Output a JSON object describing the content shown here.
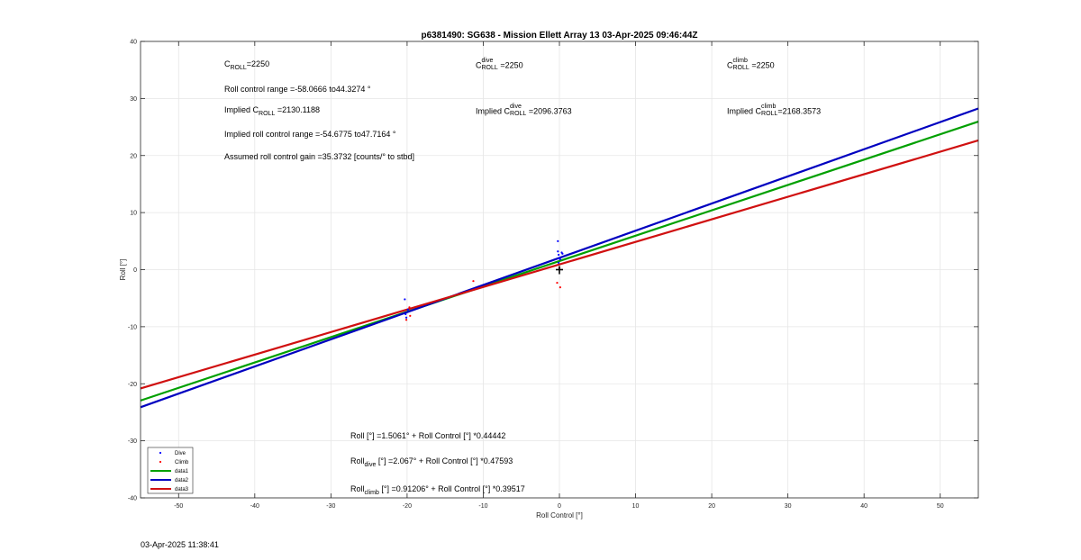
{
  "chart_data": {
    "type": "scatter",
    "title": "p6381490: SG638 - Mission Ellett Array 13 03-Apr-2025 09:46:44Z",
    "xlabel": "Roll Control [°]",
    "ylabel": "Roll [°]",
    "xlim": [
      -55,
      55
    ],
    "ylim": [
      -40,
      40
    ],
    "xticks": [
      -50,
      -40,
      -30,
      -20,
      -10,
      0,
      10,
      20,
      30,
      40,
      50
    ],
    "yticks": [
      -40,
      -30,
      -20,
      -10,
      0,
      10,
      20,
      30,
      40
    ],
    "grid": true,
    "legend_position": "bottom-left",
    "series": [
      {
        "name": "Dive",
        "kind": "scatter",
        "color": "#0000ff",
        "points": [
          [
            -20.3,
            -5.2
          ],
          [
            -20.2,
            -7.8
          ],
          [
            -20.1,
            -8.4
          ],
          [
            -19.9,
            -7.0
          ],
          [
            -0.2,
            5.0
          ],
          [
            -0.2,
            3.2
          ],
          [
            -0.1,
            2.6
          ],
          [
            0.0,
            2.0
          ],
          [
            0.1,
            1.8
          ],
          [
            -0.1,
            1.2
          ],
          [
            0.4,
            2.8
          ],
          [
            0.3,
            3.0
          ]
        ]
      },
      {
        "name": "Climb",
        "kind": "scatter",
        "color": "#ff0000",
        "points": [
          [
            -20.1,
            -8.8
          ],
          [
            -19.6,
            -8.1
          ],
          [
            -19.7,
            -6.6
          ],
          [
            -11.3,
            -2.0
          ],
          [
            -0.3,
            -2.3
          ],
          [
            0.1,
            -3.1
          ],
          [
            0.0,
            0.3
          ]
        ]
      },
      {
        "name": "data1",
        "kind": "line",
        "color": "#00a000",
        "intercept": 1.5061,
        "slope": 0.44442
      },
      {
        "name": "data2",
        "kind": "line",
        "color": "#0000c0",
        "intercept": 2.067,
        "slope": 0.47593
      },
      {
        "name": "data3",
        "kind": "line",
        "color": "#d01010",
        "intercept": 0.91206,
        "slope": 0.39517
      }
    ],
    "marker": {
      "symbol": "+",
      "x": 0,
      "y": 0,
      "color": "#000000"
    }
  },
  "annotations": {
    "c_roll_base": "C",
    "c_roll_sub": "ROLL",
    "c_roll_value": "=2250",
    "c_dive_base": "C",
    "c_dive_sup": "dive",
    "c_dive_sub": "ROLL",
    "c_dive_value": "=2250",
    "c_climb_base": "C",
    "c_climb_sup": "climb",
    "c_climb_sub": "ROLL",
    "c_climb_value": "=2250",
    "roll_control_range": "Roll control range =-58.0666 to44.3274 °",
    "implied_c_prefix": "Implied C",
    "implied_c_sub": "ROLL",
    "implied_c_value": "=2130.1188",
    "implied_dive_prefix": "Implied C",
    "implied_dive_sup": "dive",
    "implied_dive_sub": "ROLL",
    "implied_dive_value": "=2096.3763",
    "implied_climb_prefix": "Implied C",
    "implied_climb_sup": "climb",
    "implied_climb_sub": "ROLL",
    "implied_climb_value": "=2168.3573",
    "implied_range": "Implied roll control range =-54.6775 to47.7164 °",
    "assumed_gain": "Assumed roll control gain =35.3732 [counts/° to stbd]",
    "fit_all": "Roll [°] =1.5061° + Roll Control [°] *0.44442",
    "fit_dive_base": "Roll",
    "fit_dive_sub": "dive",
    "fit_dive_rest": " [°] =2.067° + Roll Control [°] *0.47593",
    "fit_climb_base": "Roll",
    "fit_climb_sub": "climb",
    "fit_climb_rest": " [°] =0.91206° + Roll Control [°] *0.39517"
  },
  "timestamp": "03-Apr-2025 11:38:41"
}
